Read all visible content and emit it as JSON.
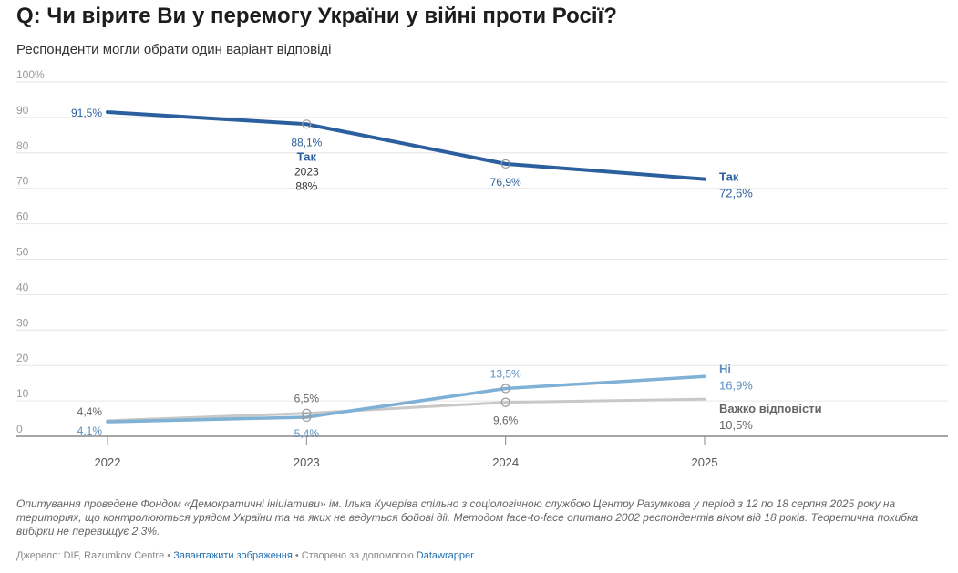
{
  "title": "Q: Чи вірите Ви у перемогу України у війні проти Росії?",
  "subtitle": "Респонденти могли обрати один варіант відповіді",
  "notes": "Опитування проведене Фондом «Демократичні ініціативи» ім. Ілька Кучеріва спільно з соціологічною службою Центру Разумкова у період з 12 по 18 серпня 2025 року на територіях, що контролюються урядом України та на яких не ведуться бойові дії. Методом face-to-face опитано 2002 респондентів віком від 18 років. Теоретична похибка вибірки не перевищує 2,3%.",
  "source": {
    "prefix": "Джерело: DIF, Razumkov Centre",
    "sep1": " • ",
    "download": "Завантажити зображення",
    "sep2": " • Створено за допомогою ",
    "tool": "Datawrapper"
  },
  "chart_data": {
    "type": "line",
    "x": [
      "2022",
      "2023",
      "2024",
      "2025"
    ],
    "ylim": [
      0,
      100
    ],
    "yticks": [
      "0",
      "10",
      "20",
      "30",
      "40",
      "50",
      "60",
      "70",
      "80",
      "90",
      "100%"
    ],
    "grid": true,
    "series": [
      {
        "name": "Так",
        "values": [
          91.5,
          88.1,
          76.9,
          72.6
        ],
        "labels": [
          "91,5%",
          "88,1%",
          "76,9%",
          "72,6%"
        ],
        "color": "#2c5f9e"
      },
      {
        "name": "Ні",
        "values": [
          4.1,
          5.4,
          13.5,
          16.9
        ],
        "labels": [
          "4,1%",
          "5,4%",
          "13,5%",
          "16,9%"
        ],
        "color": "#7fb0d5"
      },
      {
        "name": "Важко відповісти",
        "values": [
          4.4,
          6.5,
          9.6,
          10.5
        ],
        "labels": [
          "4,4%",
          "6,5%",
          "9,6%",
          "10,5%"
        ],
        "color": "#c8c8c8"
      }
    ],
    "tooltip": {
      "series": "Так",
      "year": "2023",
      "value": "88%"
    }
  }
}
